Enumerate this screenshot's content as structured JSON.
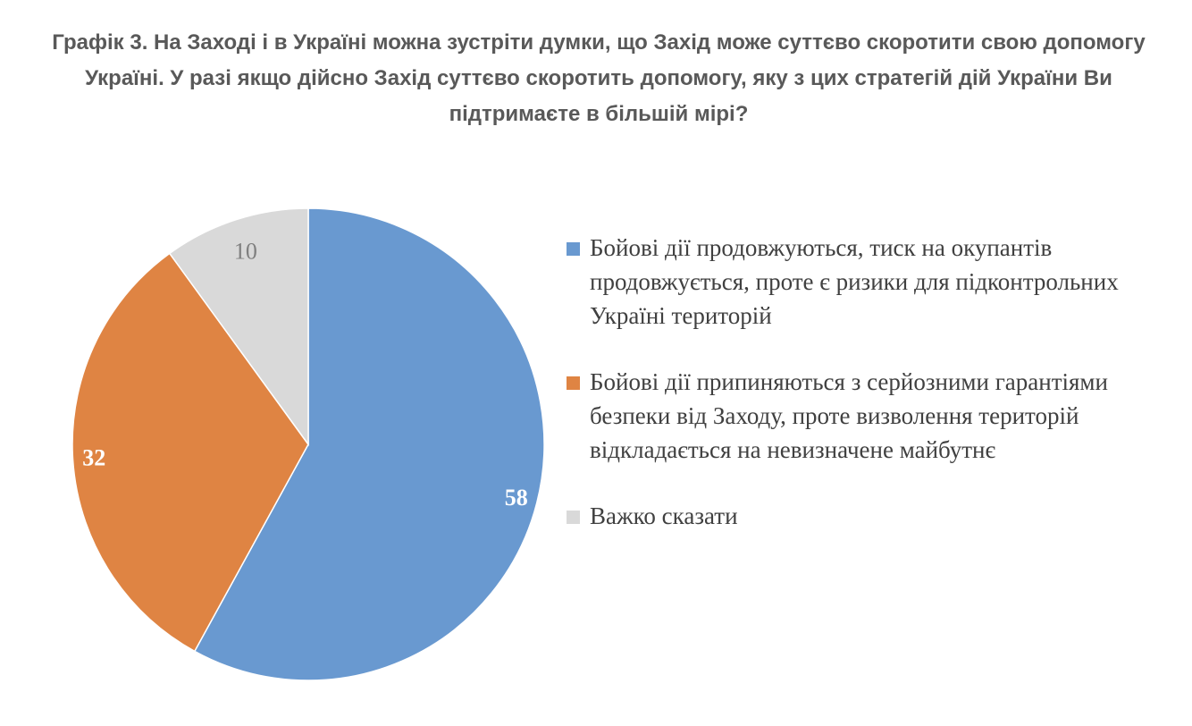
{
  "chart_data": {
    "type": "pie",
    "title": "Графік 3. На Заході і в Україні можна зустріти думки, що Захід може суттєво скоротити свою допомогу Україні. У разі якщо дійсно Захід суттєво скоротить допомогу, яку з цих стратегій дій України Ви підтримаєте в більшій мірі?",
    "categories": [
      "Бойові дії продовжуються, тиск на окупантів продовжується, проте є ризики для підконтрольних Україні територій",
      "Бойові дії припиняються з серйозними гарантіями безпеки від Заходу, проте визволення територій відкладається на невизначене майбутнє",
      "Важко сказати"
    ],
    "values": [
      58,
      32,
      10
    ],
    "colors": [
      "#6999d0",
      "#df8443",
      "#d9d9d9"
    ],
    "label_colors": [
      "#ffffff",
      "#ffffff",
      "#7f7f7f"
    ],
    "legend_position": "right"
  }
}
